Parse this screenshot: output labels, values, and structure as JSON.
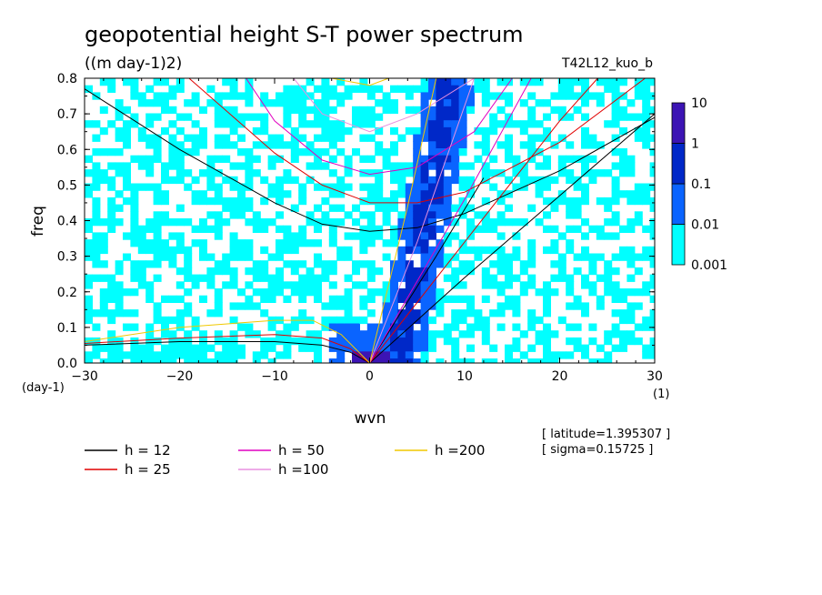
{
  "chart_data": {
    "type": "heatmap",
    "title": "geopotential height S-T power spectrum",
    "units": "((m day-1)2)",
    "run_id": "T42L12_kuo_b",
    "xlabel": "wvn",
    "ylabel": "freq",
    "x_unit": "(1)",
    "y_unit": "(day-1)",
    "xlim": [
      -30,
      30
    ],
    "ylim": [
      0,
      0.8
    ],
    "x_ticks": [
      -30,
      -20,
      -10,
      0,
      10,
      20,
      30
    ],
    "y_ticks": [
      0.0,
      0.1,
      0.2,
      0.3,
      0.4,
      0.5,
      0.6,
      0.7,
      0.8
    ],
    "colorbar": {
      "levels": [
        "0.001",
        "0.01",
        "0.1",
        "1",
        "10"
      ],
      "colors": [
        "#00ffff",
        "#0a64ff",
        "#0028c8",
        "#3c14b4"
      ]
    },
    "info": [
      "[ latitude=1.395307 ]",
      "[ sigma=0.15725 ]"
    ],
    "legend": [
      {
        "label": "h = 12",
        "color": "#000000"
      },
      {
        "label": "h = 50",
        "color": "#e000c0"
      },
      {
        "label": "h =200",
        "color": "#f0c800"
      },
      {
        "label": "h = 25",
        "color": "#e00000"
      },
      {
        "label": "h =100",
        "color": "#e890e0"
      }
    ],
    "series": [
      {
        "name": "h = 12",
        "color": "#000000",
        "curves": [
          {
            "x": [
              -30,
              -20,
              -10,
              -5,
              -2,
              0,
              1
            ],
            "y": [
              0.05,
              0.06,
              0.06,
              0.05,
              0.03,
              0.0,
              0.0
            ]
          },
          {
            "x": [
              -30,
              -20,
              -10,
              -5,
              0,
              5,
              10,
              20,
              30
            ],
            "y": [
              0.77,
              0.6,
              0.45,
              0.39,
              0.37,
              0.38,
              0.42,
              0.54,
              0.69
            ]
          },
          {
            "x": [
              0,
              10,
              20,
              30
            ],
            "y": [
              0.0,
              0.24,
              0.47,
              0.7
            ]
          },
          {
            "x": [
              0,
              3,
              7,
              12
            ],
            "y": [
              0.0,
              0.13,
              0.3,
              0.52
            ]
          }
        ]
      },
      {
        "name": "h = 25",
        "color": "#e00000",
        "curves": [
          {
            "x": [
              -30,
              -20,
              -10,
              -5,
              -2,
              0
            ],
            "y": [
              0.055,
              0.07,
              0.08,
              0.07,
              0.04,
              0.0
            ]
          },
          {
            "x": [
              -19,
              -10,
              -5,
              0,
              5,
              10,
              20,
              29
            ],
            "y": [
              0.8,
              0.59,
              0.5,
              0.45,
              0.45,
              0.48,
              0.62,
              0.8
            ]
          },
          {
            "x": [
              0,
              10,
              20,
              24
            ],
            "y": [
              0.0,
              0.34,
              0.68,
              0.8
            ]
          }
        ]
      },
      {
        "name": "h = 50",
        "color": "#e000c0",
        "curves": [
          {
            "x": [
              -13,
              -10,
              -5,
              0,
              5,
              11,
              15
            ],
            "y": [
              0.8,
              0.68,
              0.57,
              0.53,
              0.55,
              0.65,
              0.8
            ]
          },
          {
            "x": [
              0,
              5,
              10,
              17
            ],
            "y": [
              0.0,
              0.23,
              0.46,
              0.8
            ]
          }
        ]
      },
      {
        "name": "h =100",
        "color": "#e890e0",
        "curves": [
          {
            "x": [
              -8,
              -5,
              0,
              5,
              11
            ],
            "y": [
              0.8,
              0.7,
              0.65,
              0.7,
              0.8
            ]
          },
          {
            "x": [
              0,
              5,
              11
            ],
            "y": [
              0.0,
              0.34,
              0.8
            ]
          }
        ]
      },
      {
        "name": "h =200",
        "color": "#f0c800",
        "curves": [
          {
            "x": [
              -30,
              -20,
              -10,
              -6,
              -3,
              0
            ],
            "y": [
              0.06,
              0.1,
              0.12,
              0.12,
              0.08,
              0.0
            ]
          },
          {
            "x": [
              -4,
              0,
              2
            ],
            "y": [
              0.8,
              0.78,
              0.8
            ]
          },
          {
            "x": [
              0,
              4,
              7
            ],
            "y": [
              0.0,
              0.44,
              0.8
            ]
          }
        ]
      }
    ]
  }
}
